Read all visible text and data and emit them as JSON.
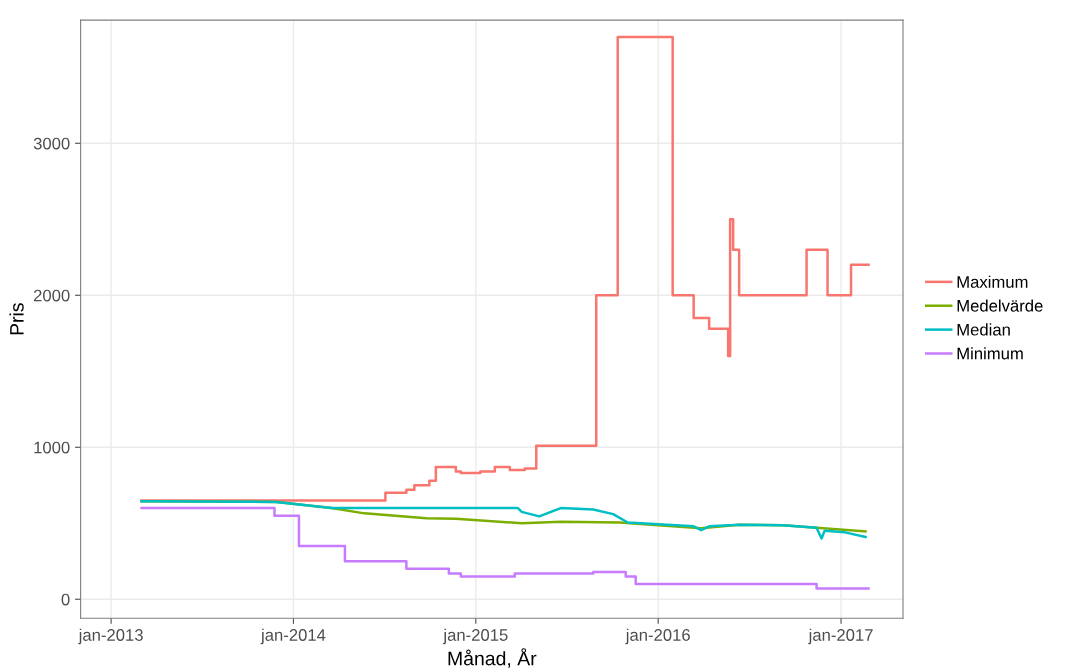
{
  "chart_data": {
    "type": "step",
    "xlabel": "Månad, År",
    "ylabel": "Pris",
    "xlim": [
      "2012-11-01",
      "2017-05-05"
    ],
    "ylim": [
      -125,
      3810
    ],
    "xticks": [
      {
        "value": "2013-01-01",
        "label": "jan-2013"
      },
      {
        "value": "2014-01-01",
        "label": "jan-2014"
      },
      {
        "value": "2015-01-01",
        "label": "jan-2015"
      },
      {
        "value": "2016-01-01",
        "label": "jan-2016"
      },
      {
        "value": "2017-01-01",
        "label": "jan-2017"
      }
    ],
    "yticks": [
      0,
      1000,
      2000,
      3000
    ],
    "grid": true,
    "legend": "right",
    "line_style": "solid",
    "series": [
      {
        "name": "Maximum",
        "color": "#f8766d",
        "x": [
          "2013-03-03",
          "2014-07-04",
          "2014-08-15",
          "2014-08-31",
          "2014-09-30",
          "2014-10-13",
          "2014-11-22",
          "2014-12-02",
          "2015-01-10",
          "2015-02-08",
          "2015-03-10",
          "2015-04-09",
          "2015-05-02",
          "2015-08-30",
          "2015-10-12",
          "2016-01-30",
          "2016-03-12",
          "2016-04-12",
          "2016-05-20",
          "2016-05-24",
          "2016-05-30",
          "2016-06-11",
          "2016-10-24",
          "2016-12-05",
          "2017-01-21",
          "2017-02-25"
        ],
        "values": [
          650,
          700,
          720,
          750,
          780,
          870,
          840,
          830,
          840,
          870,
          850,
          860,
          1010,
          2000,
          3700,
          2000,
          1850,
          1780,
          1600,
          2500,
          2300,
          2000,
          2300,
          2000,
          2200,
          2200
        ]
      },
      {
        "name": "Medelvärde",
        "color": "#7cae00",
        "type": "line",
        "x": [
          "2013-03-03",
          "2013-11-28",
          "2014-03-18",
          "2014-05-23",
          "2014-09-24",
          "2014-11-22",
          "2015-04-03",
          "2015-06-20",
          "2015-10-16",
          "2016-03-27",
          "2016-06-11",
          "2016-09-07",
          "2017-02-19"
        ],
        "values": [
          645,
          640,
          600,
          565,
          533,
          530,
          500,
          510,
          505,
          467,
          490,
          487,
          447
        ]
      },
      {
        "name": "Median",
        "color": "#00bfc4",
        "type": "line",
        "x": [
          "2013-03-03",
          "2013-11-28",
          "2014-03-18",
          "2015-03-26",
          "2015-04-03",
          "2015-05-08",
          "2015-06-20",
          "2015-08-24",
          "2015-10-03",
          "2015-11-01",
          "2016-03-12",
          "2016-03-27",
          "2016-04-12",
          "2016-06-11",
          "2016-09-07",
          "2016-11-13",
          "2016-11-23",
          "2016-11-29",
          "2017-01-09",
          "2017-02-19"
        ],
        "values": [
          645,
          640,
          600,
          600,
          575,
          545,
          600,
          590,
          560,
          505,
          480,
          455,
          480,
          490,
          487,
          470,
          400,
          450,
          440,
          410
        ]
      },
      {
        "name": "Minimum",
        "color": "#c77cff",
        "x": [
          "2013-03-03",
          "2013-11-24",
          "2014-01-12",
          "2014-04-14",
          "2014-08-15",
          "2014-11-08",
          "2014-12-02",
          "2015-03-20",
          "2015-08-24",
          "2015-10-28",
          "2015-11-17",
          "2016-11-13",
          "2017-02-25"
        ],
        "values": [
          600,
          550,
          350,
          250,
          200,
          170,
          150,
          170,
          180,
          150,
          100,
          70,
          70
        ]
      }
    ]
  }
}
